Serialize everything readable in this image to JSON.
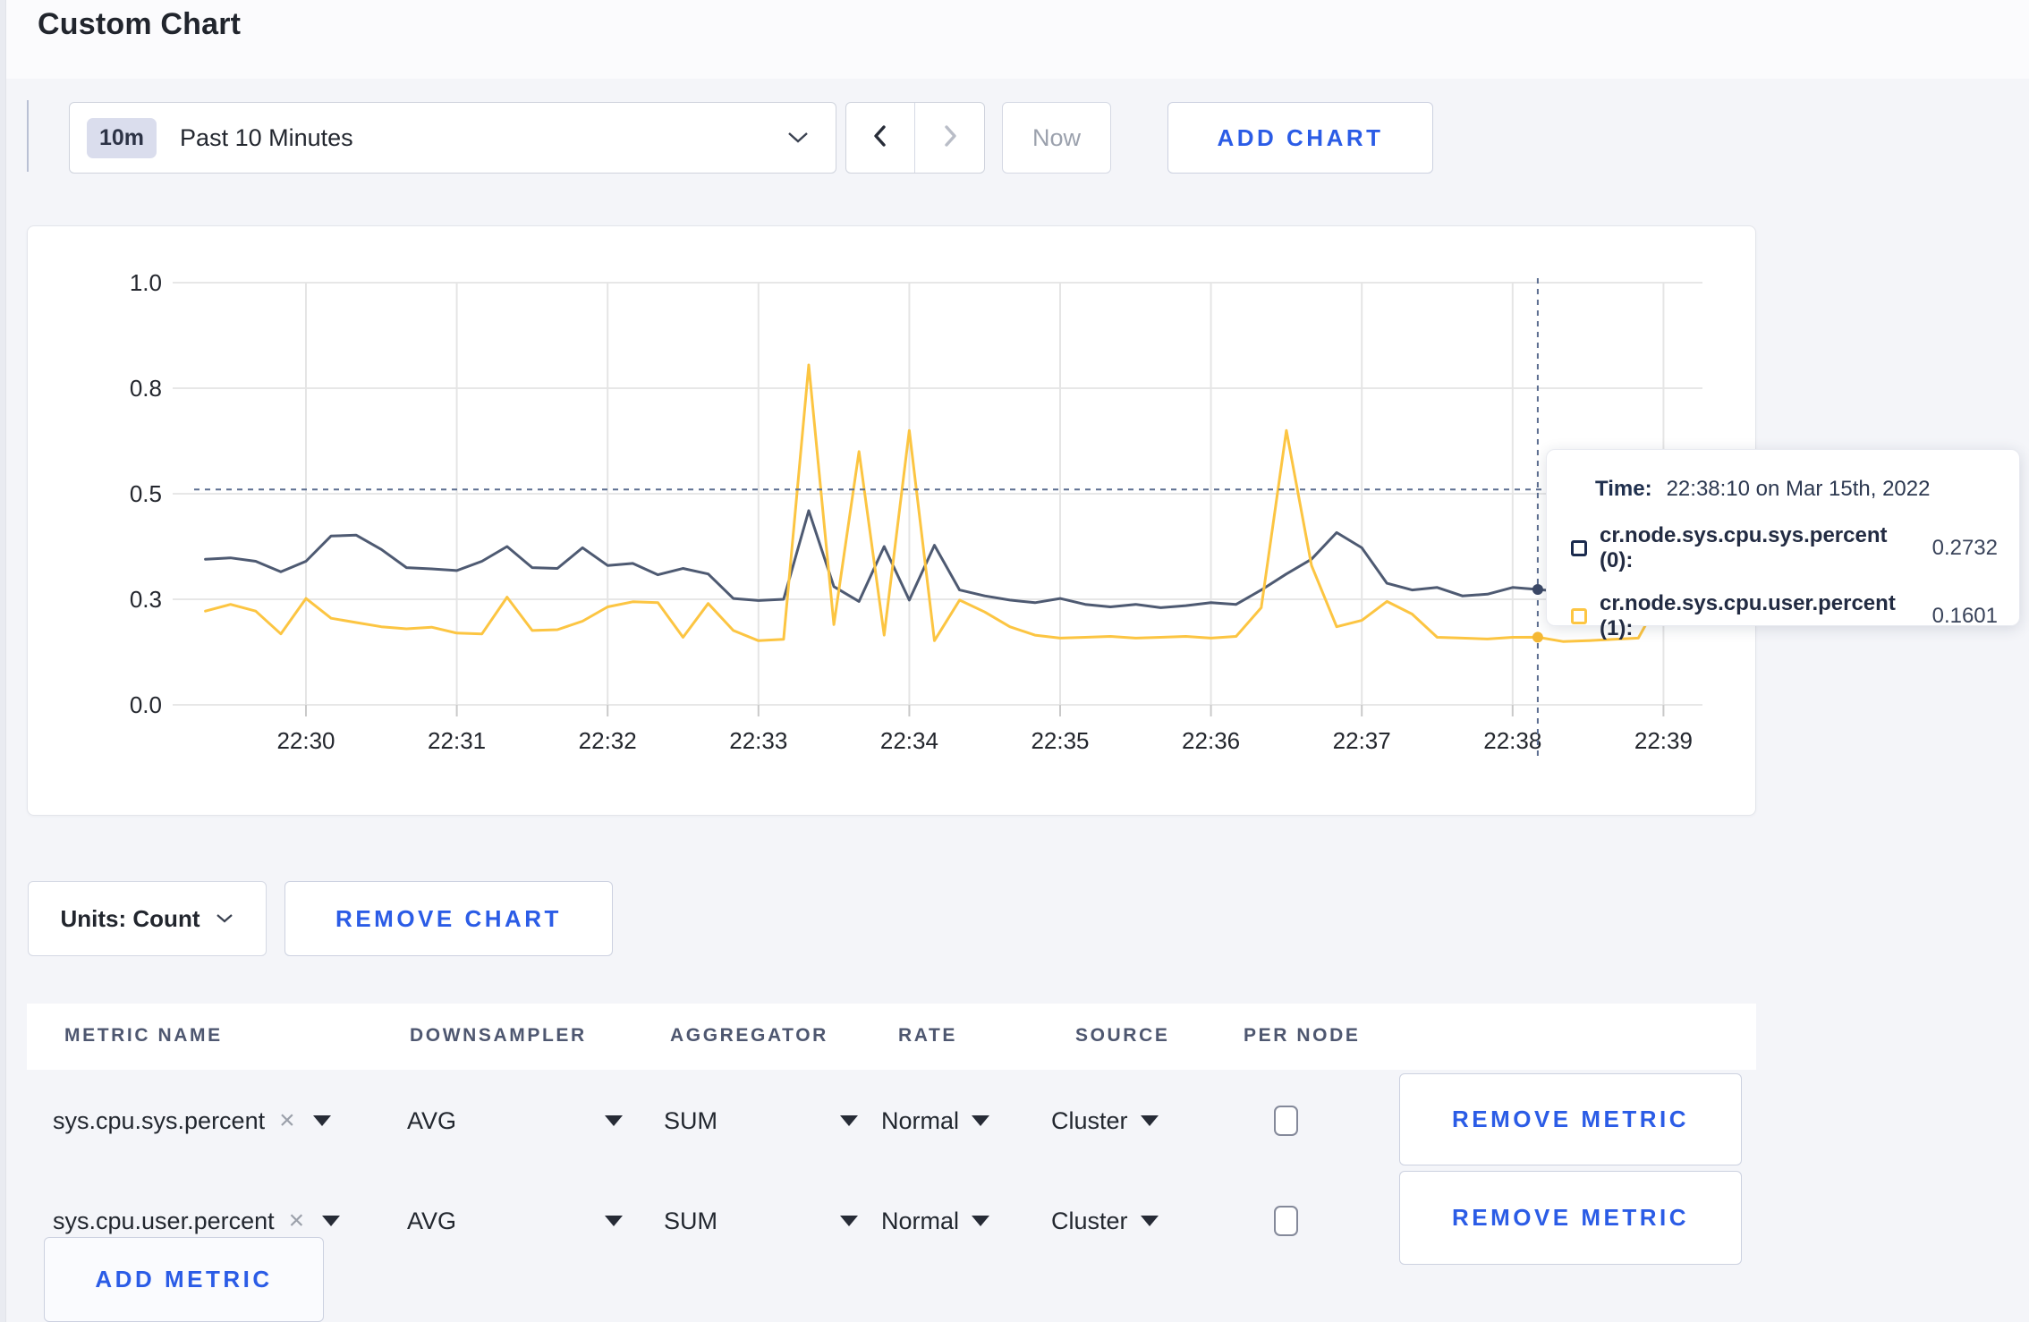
{
  "page": {
    "title": "Custom Chart"
  },
  "toolbar": {
    "time_scale_badge": "10m",
    "time_scale_label": "Past 10 Minutes",
    "now_label": "Now",
    "add_chart_label": "ADD CHART"
  },
  "chart_footer": {
    "units_label": "Units: Count",
    "remove_chart_label": "REMOVE CHART",
    "add_metric_label": "ADD METRIC"
  },
  "tooltip": {
    "time_label": "Time:",
    "time_value": "22:38:10 on Mar 15th, 2022",
    "series": [
      {
        "name": "cr.node.sys.cpu.sys.percent (0):",
        "value": "0.2732",
        "swatch_color": "#1b2b4e"
      },
      {
        "name": "cr.node.sys.cpu.user.percent (1):",
        "value": "0.1601",
        "swatch_color": "#fdc643"
      }
    ]
  },
  "metrics_table": {
    "headers": [
      "METRIC NAME",
      "DOWNSAMPLER",
      "AGGREGATOR",
      "RATE",
      "SOURCE",
      "PER NODE"
    ],
    "rows": [
      {
        "metric": "sys.cpu.sys.percent",
        "downsampler": "AVG",
        "aggregator": "SUM",
        "rate": "Normal",
        "source": "Cluster",
        "per_node_checked": false,
        "remove_label": "REMOVE METRIC"
      },
      {
        "metric": "sys.cpu.user.percent",
        "downsampler": "AVG",
        "aggregator": "SUM",
        "rate": "Normal",
        "source": "Cluster",
        "per_node_checked": false,
        "remove_label": "REMOVE METRIC"
      }
    ]
  },
  "chart_data": {
    "type": "line",
    "title": "",
    "xlabel": "",
    "ylabel": "",
    "ylim": [
      0,
      1
    ],
    "grid": true,
    "legend_position": "tooltip-only",
    "x_ticks": [
      "22:30",
      "22:31",
      "22:32",
      "22:33",
      "22:34",
      "22:35",
      "22:36",
      "22:37",
      "22:38",
      "22:39"
    ],
    "y_ticks": [
      {
        "label": "1.0",
        "value": 1.0
      },
      {
        "label": "0.8",
        "value": 0.75
      },
      {
        "label": "0.5",
        "value": 0.5
      },
      {
        "label": "0.3",
        "value": 0.25
      },
      {
        "label": "0.0",
        "value": 0
      }
    ],
    "first_sample_time": "22:29:20",
    "first_sample_offset_s": -40,
    "sample_interval_s": 10,
    "series": [
      {
        "name": "cr.node.sys.cpu.sys.percent",
        "color": "#4e5a72",
        "dot_color": "#3c4967",
        "values": [
          0.345,
          0.348,
          0.34,
          0.315,
          0.34,
          0.4,
          0.402,
          0.368,
          0.325,
          0.322,
          0.318,
          0.34,
          0.375,
          0.325,
          0.323,
          0.372,
          0.33,
          0.335,
          0.308,
          0.323,
          0.31,
          0.252,
          0.247,
          0.25,
          0.46,
          0.28,
          0.245,
          0.375,
          0.248,
          0.378,
          0.272,
          0.258,
          0.248,
          0.242,
          0.252,
          0.238,
          0.232,
          0.238,
          0.23,
          0.235,
          0.242,
          0.238,
          0.272,
          0.31,
          0.345,
          0.408,
          0.372,
          0.288,
          0.272,
          0.278,
          0.258,
          0.262,
          0.278,
          0.2732,
          0.268,
          0.282,
          0.268,
          0.262,
          0.258,
          0.285
        ]
      },
      {
        "name": "cr.node.sys.cpu.user.percent",
        "color": "#fcc542",
        "dot_color": "#f5b834",
        "values": [
          0.222,
          0.238,
          0.222,
          0.168,
          0.252,
          0.205,
          0.195,
          0.185,
          0.18,
          0.184,
          0.17,
          0.168,
          0.255,
          0.176,
          0.178,
          0.198,
          0.232,
          0.244,
          0.242,
          0.16,
          0.24,
          0.176,
          0.152,
          0.155,
          0.805,
          0.19,
          0.6,
          0.165,
          0.65,
          0.152,
          0.248,
          0.22,
          0.185,
          0.165,
          0.158,
          0.16,
          0.162,
          0.158,
          0.16,
          0.162,
          0.158,
          0.162,
          0.23,
          0.65,
          0.33,
          0.185,
          0.2,
          0.245,
          0.215,
          0.16,
          0.158,
          0.156,
          0.16,
          0.1601,
          0.15,
          0.152,
          0.155,
          0.158,
          0.265,
          0.225
        ]
      }
    ],
    "crosshair": {
      "time": "22:38:10",
      "time_offset_s": 490,
      "h_value": 0.51,
      "points": [
        {
          "series": 0,
          "value": 0.2732
        },
        {
          "series": 1,
          "value": 0.1601
        }
      ]
    }
  }
}
